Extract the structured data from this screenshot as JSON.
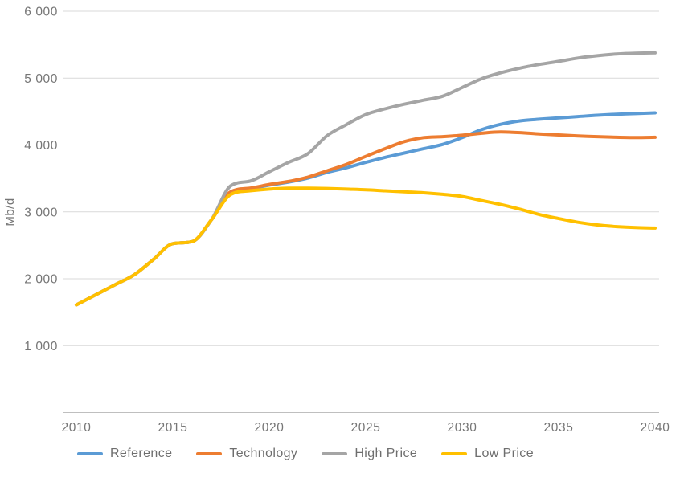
{
  "chart_data": {
    "type": "line",
    "title": "",
    "xlabel": "",
    "ylabel": "Mb/d",
    "xlim": [
      2010,
      2040
    ],
    "ylim": [
      0,
      6000
    ],
    "grid": "horizontal",
    "legend_position": "bottom",
    "x": [
      2010,
      2011,
      2012,
      2013,
      2014,
      2015,
      2016,
      2017,
      2018,
      2019,
      2020,
      2021,
      2022,
      2023,
      2024,
      2025,
      2026,
      2027,
      2028,
      2029,
      2030,
      2031,
      2032,
      2033,
      2034,
      2035,
      2036,
      2037,
      2038,
      2039,
      2040
    ],
    "x_ticks": [
      2010,
      2015,
      2020,
      2025,
      2030,
      2035,
      2040
    ],
    "x_tick_labels": [
      "2010",
      "2015",
      "2020",
      "2025",
      "2030",
      "2035",
      "2040"
    ],
    "y_ticks": [
      1000,
      2000,
      3000,
      4000,
      5000,
      6000
    ],
    "y_tick_labels": [
      "1 000",
      "2 000",
      "3 000",
      "4 000",
      "5 000",
      "6 000"
    ],
    "series": [
      {
        "name": "Reference",
        "color": "#5B9BD5",
        "values": [
          1610,
          1760,
          1910,
          2060,
          2290,
          2525,
          2555,
          2880,
          3290,
          3345,
          3400,
          3445,
          3505,
          3590,
          3660,
          3740,
          3815,
          3880,
          3945,
          4010,
          4110,
          4230,
          4310,
          4360,
          4385,
          4405,
          4425,
          4445,
          4460,
          4470,
          4480
        ]
      },
      {
        "name": "Technology",
        "color": "#ED7D31",
        "values": [
          1610,
          1760,
          1910,
          2060,
          2290,
          2525,
          2555,
          2880,
          3300,
          3355,
          3410,
          3455,
          3520,
          3615,
          3710,
          3830,
          3945,
          4050,
          4110,
          4125,
          4145,
          4175,
          4195,
          4185,
          4165,
          4150,
          4135,
          4125,
          4115,
          4110,
          4115
        ]
      },
      {
        "name": "High Price",
        "color": "#A5A5A5",
        "values": [
          1610,
          1760,
          1910,
          2060,
          2290,
          2525,
          2555,
          2880,
          3390,
          3460,
          3600,
          3740,
          3870,
          4140,
          4305,
          4455,
          4540,
          4610,
          4670,
          4730,
          4860,
          4990,
          5080,
          5150,
          5205,
          5250,
          5300,
          5335,
          5360,
          5372,
          5378
        ]
      },
      {
        "name": "Low Price",
        "color": "#FFC000",
        "values": [
          1610,
          1760,
          1910,
          2060,
          2290,
          2525,
          2555,
          2880,
          3260,
          3315,
          3340,
          3355,
          3355,
          3350,
          3340,
          3330,
          3315,
          3300,
          3285,
          3262,
          3230,
          3170,
          3110,
          3040,
          2960,
          2900,
          2845,
          2805,
          2780,
          2765,
          2758
        ]
      }
    ]
  },
  "colors": {
    "gridline": "#D9D9D9",
    "axis_line": "#BFBFBF",
    "tick_text": "#767676",
    "legend_text": "#6e6e6e",
    "background": "#ffffff"
  }
}
